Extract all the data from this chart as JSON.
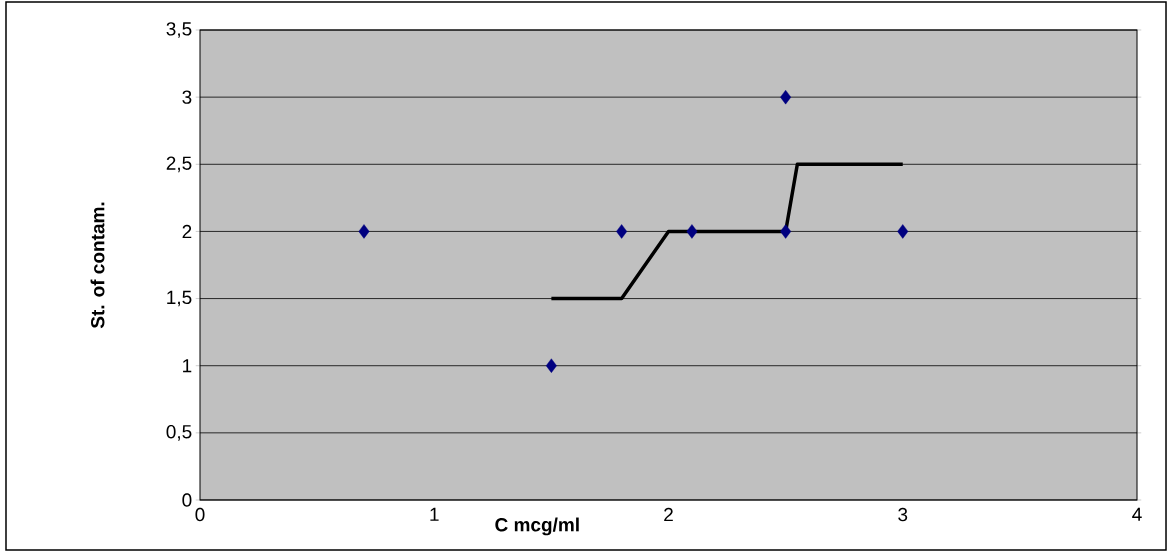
{
  "chart_data": {
    "type": "scatter",
    "xlabel": "C mcg/ml",
    "ylabel": "St. of contam.",
    "xlim": [
      0,
      4
    ],
    "xticks": [
      0,
      1,
      2,
      3,
      4
    ],
    "ylim": [
      0,
      3.5
    ],
    "yticks": [
      0,
      {
        "value": 0.5,
        "label": "0,5"
      },
      1,
      {
        "value": 1.5,
        "label": "1,5"
      },
      2,
      {
        "value": 2.5,
        "label": "2,5"
      },
      3,
      {
        "value": 3.5,
        "label": "3,5"
      }
    ],
    "grid": "y",
    "series": [
      {
        "marker": "diamond",
        "color": "#000080",
        "x": [
          0.7,
          1.5,
          1.8,
          2.1,
          2.5,
          2.5,
          3
        ],
        "values": [
          2,
          1,
          2,
          2,
          2,
          3,
          2
        ]
      },
      {
        "type": "line",
        "marker": "none",
        "color": "#000000",
        "line_style": "solid",
        "x": [
          1.5,
          1.8,
          2.0,
          2.5,
          2.55,
          3
        ],
        "values": [
          1.5,
          1.5,
          2,
          2,
          2.5,
          2.5
        ]
      }
    ]
  }
}
